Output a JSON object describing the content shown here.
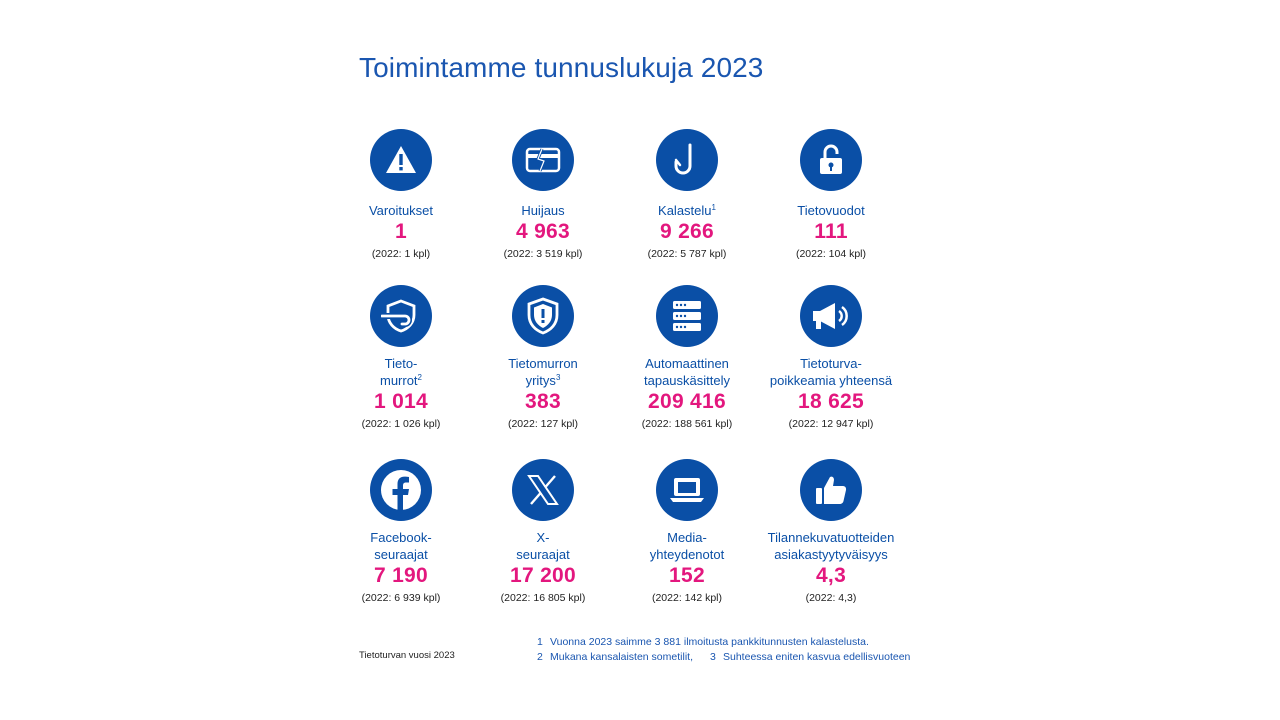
{
  "title": "Toimintamme tunnuslukuja 2023",
  "colors": {
    "primary": "#0a4fa6",
    "accent": "#e3177e",
    "text": "#222222"
  },
  "stats": [
    {
      "icon": "warning-icon",
      "label": "Varoitukset",
      "sup": "",
      "value": "1",
      "prev": "(2022: 1 kpl)"
    },
    {
      "icon": "card-fraud-icon",
      "label": "Huijaus",
      "sup": "",
      "value": "4 963",
      "prev": "(2022: 3 519 kpl)"
    },
    {
      "icon": "hook-icon",
      "label": "Kalastelu",
      "sup": "1",
      "value": "9 266",
      "prev": "(2022: 5 787 kpl)"
    },
    {
      "icon": "unlocked-icon",
      "label": "Tietovuodot",
      "sup": "",
      "value": "111",
      "prev": "(2022: 104 kpl)"
    },
    {
      "icon": "shield-arrow-icon",
      "label1": "Tieto-",
      "label2": "murrot",
      "sup": "2",
      "value": "1 014",
      "prev": "(2022: 1 026 kpl)"
    },
    {
      "icon": "shield-alert-icon",
      "label1": "Tietomurron",
      "label2": "yritys",
      "sup": "3",
      "value": "383",
      "prev": "(2022: 127 kpl)"
    },
    {
      "icon": "server-icon",
      "label1": "Automaattinen",
      "label2": "tapauskäsittely",
      "sup": "",
      "value": "209 416",
      "prev": "(2022: 188 561 kpl)"
    },
    {
      "icon": "megaphone-icon",
      "label1": "Tietoturva-",
      "label2": "poikkeamia yhteensä",
      "sup": "",
      "value": "18 625",
      "prev": "(2022: 12 947 kpl)"
    },
    {
      "icon": "facebook-icon",
      "label1": "Facebook-",
      "label2": "seuraajat",
      "sup": "",
      "value": "7 190",
      "prev": "(2022: 6 939 kpl)"
    },
    {
      "icon": "x-logo-icon",
      "label1": "X-",
      "label2": "seuraajat",
      "sup": "",
      "value": "17 200",
      "prev": "(2022: 16 805 kpl)"
    },
    {
      "icon": "laptop-icon",
      "label1": "Media-",
      "label2": "yhteydenotot",
      "sup": "",
      "value": "152",
      "prev": "(2022: 142 kpl)"
    },
    {
      "icon": "thumbs-up-icon",
      "label1": "Tilannekuvatuotteiden",
      "label2": "asiakastyytyväisyys",
      "sup": "",
      "value": "4,3",
      "prev": "(2022: 4,3)"
    }
  ],
  "source": "Tietoturvan vuosi 2023",
  "footnotes": [
    {
      "num": "1",
      "text": "Vuonna 2023 saimme 3 881 ilmoitusta pankkitunnusten kalastelusta."
    },
    {
      "num": "2",
      "text": "Mukana kansalaisten sometilit,"
    },
    {
      "num": "3",
      "text": "Suhteessa eniten kasvua edellisvuoteen"
    }
  ]
}
